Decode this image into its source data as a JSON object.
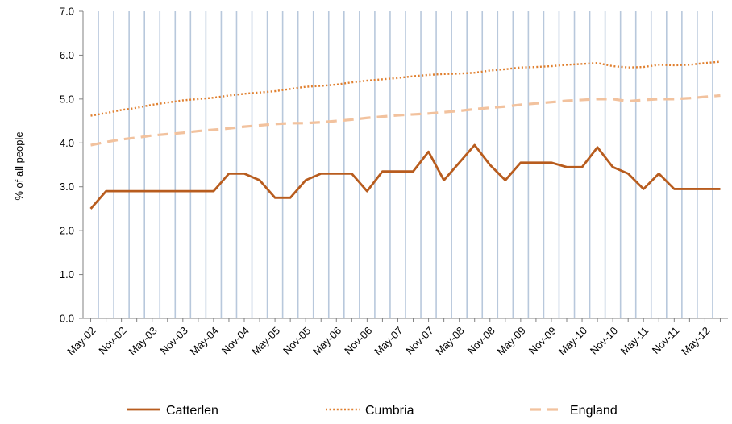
{
  "chart_data": {
    "type": "line",
    "title": "",
    "xlabel": "",
    "ylabel": "% of all people",
    "ylim": [
      0,
      7
    ],
    "yticks": [
      "0.0",
      "1.0",
      "2.0",
      "3.0",
      "4.0",
      "5.0",
      "6.0",
      "7.0"
    ],
    "grid": "vertical",
    "legend_position": "bottom",
    "x": [
      "May-02",
      "Aug-02",
      "Nov-02",
      "Feb-03",
      "May-03",
      "Aug-03",
      "Nov-03",
      "Feb-04",
      "May-04",
      "Aug-04",
      "Nov-04",
      "Feb-05",
      "May-05",
      "Aug-05",
      "Nov-05",
      "Feb-06",
      "May-06",
      "Aug-06",
      "Nov-06",
      "Feb-07",
      "May-07",
      "Aug-07",
      "Nov-07",
      "Feb-08",
      "May-08",
      "Aug-08",
      "Nov-08",
      "Feb-09",
      "May-09",
      "Aug-09",
      "Nov-09",
      "Feb-10",
      "May-10",
      "Aug-10",
      "Nov-10",
      "Feb-11",
      "May-11",
      "Aug-11",
      "Nov-11",
      "Feb-12",
      "May-12",
      "Aug-12"
    ],
    "x_tick_labels": [
      "May-02",
      "Nov-02",
      "May-03",
      "Nov-03",
      "May-04",
      "Nov-04",
      "May-05",
      "Nov-05",
      "May-06",
      "Nov-06",
      "May-07",
      "Nov-07",
      "May-08",
      "Nov-08",
      "May-09",
      "Nov-09",
      "May-10",
      "Nov-10",
      "May-11",
      "Nov-11",
      "May-12"
    ],
    "series": [
      {
        "name": "Catterlen",
        "color": "#B85C1E",
        "style": "solid",
        "values": [
          2.5,
          2.9,
          2.9,
          2.9,
          2.9,
          2.9,
          2.9,
          2.9,
          2.9,
          3.3,
          3.3,
          3.15,
          2.75,
          2.75,
          3.15,
          3.3,
          3.3,
          3.3,
          2.9,
          3.35,
          3.35,
          3.35,
          3.8,
          3.15,
          3.55,
          3.95,
          3.5,
          3.15,
          3.55,
          3.55,
          3.55,
          3.45,
          3.45,
          3.9,
          3.45,
          3.3,
          2.95,
          3.3,
          2.95,
          2.95,
          2.95,
          2.95
        ]
      },
      {
        "name": "Cumbria",
        "color": "#E07F2E",
        "style": "dotted",
        "values": [
          4.62,
          4.68,
          4.75,
          4.8,
          4.87,
          4.92,
          4.97,
          5.0,
          5.03,
          5.08,
          5.12,
          5.15,
          5.18,
          5.23,
          5.28,
          5.3,
          5.33,
          5.38,
          5.42,
          5.45,
          5.48,
          5.52,
          5.55,
          5.57,
          5.58,
          5.6,
          5.65,
          5.68,
          5.72,
          5.73,
          5.75,
          5.78,
          5.8,
          5.82,
          5.75,
          5.72,
          5.73,
          5.78,
          5.77,
          5.78,
          5.82,
          5.85
        ]
      },
      {
        "name": "England",
        "color": "#F2C29E",
        "style": "dashed",
        "values": [
          3.95,
          4.02,
          4.08,
          4.12,
          4.17,
          4.2,
          4.23,
          4.27,
          4.3,
          4.33,
          4.37,
          4.4,
          4.43,
          4.45,
          4.45,
          4.47,
          4.5,
          4.53,
          4.57,
          4.6,
          4.63,
          4.65,
          4.67,
          4.7,
          4.73,
          4.77,
          4.8,
          4.83,
          4.87,
          4.9,
          4.93,
          4.96,
          4.98,
          5.0,
          5.0,
          4.95,
          4.98,
          5.0,
          5.0,
          5.02,
          5.05,
          5.08
        ]
      }
    ]
  }
}
